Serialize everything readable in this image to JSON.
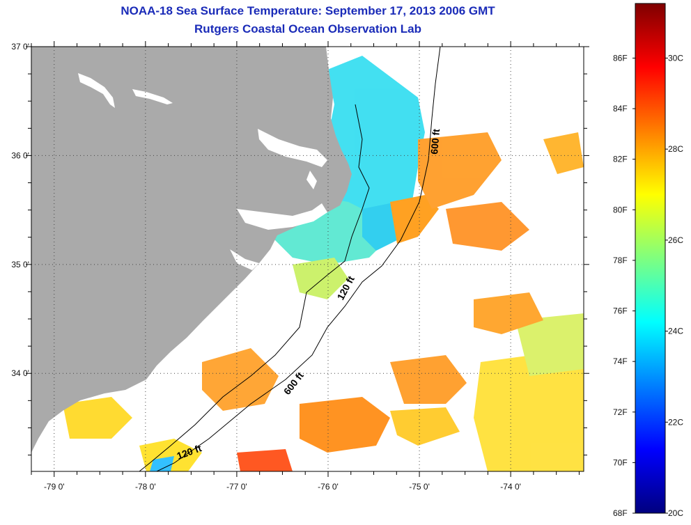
{
  "title": {
    "line1": "NOAA-18 Sea Surface Temperature:  September 17, 2013 2006 GMT",
    "line2": "Rutgers Coastal Ocean Observation Lab"
  },
  "map": {
    "lat_labels": [
      "37 0'",
      "36 0'",
      "35 0'",
      "34 0'"
    ],
    "lat_values": [
      37,
      36,
      35,
      34
    ],
    "lat_range": [
      33.1,
      37.0
    ],
    "lon_labels": [
      "-79 0'",
      "-78 0'",
      "-77 0'",
      "-76 0'",
      "-75 0'",
      "-74 0'"
    ],
    "lon_values": [
      -79,
      -78,
      -77,
      -76,
      -75,
      -74
    ],
    "lon_range": [
      -79.25,
      -73.2
    ],
    "contour_labels": [
      {
        "text": "600 ft"
      },
      {
        "text": "120 ft"
      },
      {
        "text": "600 ft"
      },
      {
        "text": "120 ft"
      }
    ],
    "colors": {
      "land": "#aaaaaa",
      "ocean_nodata": "#ffffff",
      "grid": "#444444"
    }
  },
  "colorbar": {
    "f_labels": [
      "86F",
      "84F",
      "82F",
      "80F",
      "78F",
      "76F",
      "74F",
      "72F",
      "70F",
      "68F"
    ],
    "f_values": [
      86,
      84,
      82,
      80,
      78,
      76,
      74,
      72,
      70,
      68
    ],
    "c_labels": [
      "30C",
      "28C",
      "26C",
      "24C",
      "22C",
      "20C"
    ],
    "c_values": [
      30,
      28,
      26,
      24,
      22,
      20
    ],
    "range_c": [
      20,
      31.2
    ],
    "stops": [
      "#00007f",
      "#0000ff",
      "#007fff",
      "#00ffff",
      "#7fff7f",
      "#ffff00",
      "#ff7f00",
      "#ff0000",
      "#7f0000"
    ]
  }
}
